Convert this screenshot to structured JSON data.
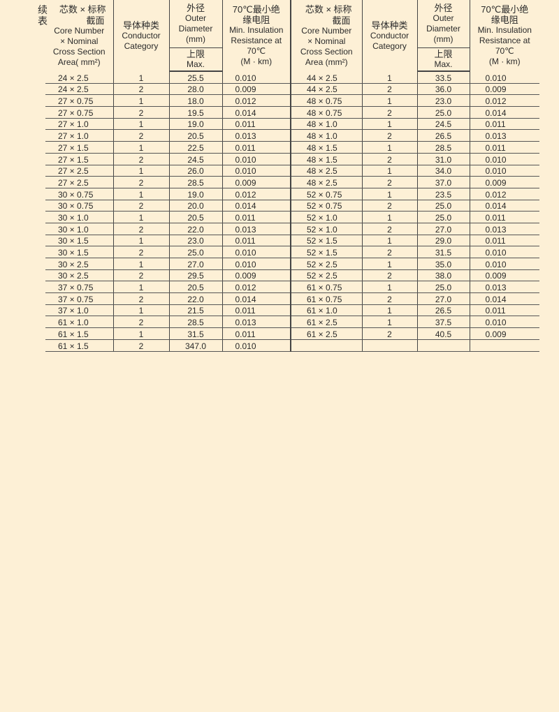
{
  "continued_label": "续表",
  "header": {
    "core_zh_a": "芯数 ×",
    "core_zh_b": "标称",
    "core_zh_c": "截面",
    "core_en_left": [
      "Core Number",
      "× Nominal",
      "Cross Section",
      "Area( mm²)"
    ],
    "core_en_right": [
      "Core Number",
      "× Nominal",
      "Cross Section",
      "Area (mm²)"
    ],
    "category_zh": "导体种类",
    "category_en": [
      "Conductor",
      "Category"
    ],
    "diameter_zh": "外径",
    "diameter_en": [
      "Outer",
      "Diameter",
      "(mm)"
    ],
    "max_zh": "上限",
    "max_en": "Max.",
    "resistance_zh": [
      "70℃最小绝",
      "缘电阻"
    ],
    "resistance_en": [
      "Min. Insulation",
      "Resistance at",
      "70℃",
      "(M    · km)"
    ]
  },
  "left_rows": [
    [
      "24 × 2.5",
      "1",
      "25.5",
      "0.010"
    ],
    [
      "24 × 2.5",
      "2",
      "28.0",
      "0.009"
    ],
    [
      "27 × 0.75",
      "1",
      "18.0",
      "0.012"
    ],
    [
      "27 × 0.75",
      "2",
      "19.5",
      "0.014"
    ],
    [
      "27 × 1.0",
      "1",
      "19.0",
      "0.011"
    ],
    [
      "27 × 1.0",
      "2",
      "20.5",
      "0.013"
    ],
    [
      "27 × 1.5",
      "1",
      "22.5",
      "0.011"
    ],
    [
      "27 × 1.5",
      "2",
      "24.5",
      "0.010"
    ],
    [
      "27 × 2.5",
      "1",
      "26.0",
      "0.010"
    ],
    [
      "27 × 2.5",
      "2",
      "28.5",
      "0.009"
    ],
    [
      "30 × 0.75",
      "1",
      "19.0",
      "0.012"
    ],
    [
      "30 × 0.75",
      "2",
      "20.0",
      "0.014"
    ],
    [
      "30 × 1.0",
      "1",
      "20.5",
      "0.011"
    ],
    [
      "30 × 1.0",
      "2",
      "22.0",
      "0.013"
    ],
    [
      "30 × 1.5",
      "1",
      "23.0",
      "0.011"
    ],
    [
      "30 × 1.5",
      "2",
      "25.0",
      "0.010"
    ],
    [
      "30 × 2.5",
      "1",
      "27.0",
      "0.010"
    ],
    [
      "30 × 2.5",
      "2",
      "29.5",
      "0.009"
    ],
    [
      "37 × 0.75",
      "1",
      "20.5",
      "0.012"
    ],
    [
      "37 × 0.75",
      "2",
      "22.0",
      "0.014"
    ],
    [
      "37 × 1.0",
      "1",
      "21.5",
      "0.011"
    ],
    [
      "61 × 1.0",
      "2",
      "28.5",
      "0.013"
    ],
    [
      "61 × 1.5",
      "1",
      "31.5",
      "0.011"
    ],
    [
      "61 × 1.5",
      "2",
      "347.0",
      "0.010"
    ]
  ],
  "right_rows": [
    [
      "44 × 2.5",
      "1",
      "33.5",
      "0.010"
    ],
    [
      "44 × 2.5",
      "2",
      "36.0",
      "0.009"
    ],
    [
      "48 × 0.75",
      "1",
      "23.0",
      "0.012"
    ],
    [
      "48 × 0.75",
      "2",
      "25.0",
      "0.014"
    ],
    [
      "48 × 1.0",
      "1",
      "24.5",
      "0.011"
    ],
    [
      "48 × 1.0",
      "2",
      "26.5",
      "0.013"
    ],
    [
      "48 × 1.5",
      "1",
      "28.5",
      "0.011"
    ],
    [
      "48 × 1.5",
      "2",
      "31.0",
      "0.010"
    ],
    [
      "48 × 2.5",
      "1",
      "34.0",
      "0.010"
    ],
    [
      "48 × 2.5",
      "2",
      "37.0",
      "0.009"
    ],
    [
      "52 × 0.75",
      "1",
      "23.5",
      "0.012"
    ],
    [
      "52 × 0.75",
      "2",
      "25.0",
      "0.014"
    ],
    [
      "52 × 1.0",
      "1",
      "25.0",
      "0.011"
    ],
    [
      "52 × 1.0",
      "2",
      "27.0",
      "0.013"
    ],
    [
      "52 × 1.5",
      "1",
      "29.0",
      "0.011"
    ],
    [
      "52 × 1.5",
      "2",
      "31.5",
      "0.010"
    ],
    [
      "52 × 2.5",
      "1",
      "35.0",
      "0.010"
    ],
    [
      "52 × 2.5",
      "2",
      "38.0",
      "0.009"
    ],
    [
      "61 × 0.75",
      "1",
      "25.0",
      "0.013"
    ],
    [
      "61 × 0.75",
      "2",
      "27.0",
      "0.014"
    ],
    [
      "61 × 1.0",
      "1",
      "26.5",
      "0.011"
    ],
    [
      "61 × 2.5",
      "1",
      "37.5",
      "0.010"
    ],
    [
      "61 × 2.5",
      "2",
      "40.5",
      "0.009"
    ]
  ]
}
